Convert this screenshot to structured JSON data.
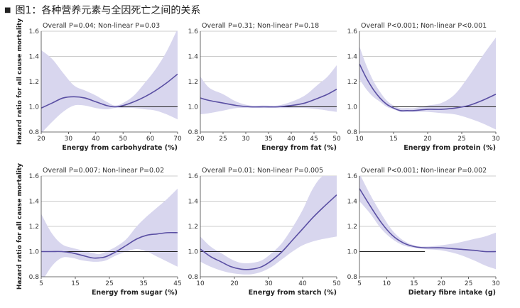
{
  "title": "图1：各种营养元素与全因死亡之间的关系",
  "ylabel": "Hazard ratio for all cause mortality",
  "colors": {
    "line": "#5a4fa3",
    "band": "#d8d6ee",
    "ref": "#222222",
    "grid": "#bdbdbd"
  },
  "chart_data": [
    {
      "type": "line",
      "annotation": "Overall P=0.04; Non-linear P=0.03",
      "xlabel": "Energy from carbohydrate (%)",
      "xlim": [
        20,
        70
      ],
      "xticks": [
        20,
        30,
        40,
        50,
        60,
        70
      ],
      "ylim": [
        0.8,
        1.6
      ],
      "yticks": [
        0.8,
        1.0,
        1.2,
        1.4,
        1.6
      ],
      "ref_range": [
        47,
        70
      ],
      "x": [
        20,
        24,
        28,
        32,
        36,
        40,
        44,
        47,
        50,
        54,
        58,
        62,
        66,
        70
      ],
      "y": [
        0.99,
        1.03,
        1.07,
        1.08,
        1.07,
        1.04,
        1.01,
        1.0,
        1.01,
        1.04,
        1.08,
        1.13,
        1.19,
        1.26
      ],
      "lower": [
        0.79,
        0.88,
        0.96,
        1.01,
        1.01,
        0.99,
        0.98,
        0.99,
        0.99,
        0.99,
        0.98,
        0.97,
        0.94,
        0.9
      ],
      "upper": [
        1.45,
        1.38,
        1.27,
        1.17,
        1.13,
        1.09,
        1.04,
        1.01,
        1.03,
        1.09,
        1.19,
        1.3,
        1.44,
        1.62
      ]
    },
    {
      "type": "line",
      "annotation": "Overall P=0.31; Non-linear P=0.18",
      "xlabel": "Energy from fat (%)",
      "xlim": [
        20,
        50
      ],
      "xticks": [
        20,
        25,
        30,
        35,
        40,
        45,
        50
      ],
      "ylim": [
        0.8,
        1.6
      ],
      "yticks": [
        0.8,
        1.0,
        1.2,
        1.4,
        1.6
      ],
      "ref_range": [
        31,
        50
      ],
      "x": [
        20,
        22,
        25,
        28,
        31,
        34,
        37,
        40,
        43,
        46,
        48,
        50
      ],
      "y": [
        1.07,
        1.05,
        1.03,
        1.01,
        1.0,
        1.0,
        1.0,
        1.01,
        1.03,
        1.07,
        1.1,
        1.14
      ],
      "lower": [
        0.94,
        0.95,
        0.97,
        0.99,
        0.99,
        0.99,
        0.99,
        0.99,
        0.99,
        0.98,
        0.97,
        0.96
      ],
      "upper": [
        1.24,
        1.15,
        1.1,
        1.04,
        1.01,
        1.01,
        1.01,
        1.04,
        1.09,
        1.18,
        1.24,
        1.33
      ]
    },
    {
      "type": "line",
      "annotation": "Overall P<0.001; Non-linear P<0.001",
      "xlabel": "Energy from protein (%)",
      "xlim": [
        10,
        30
      ],
      "xticks": [
        10,
        15,
        20,
        25,
        30
      ],
      "ylim": [
        0.8,
        1.6
      ],
      "yticks": [
        0.8,
        1.0,
        1.2,
        1.4,
        1.6
      ],
      "ref_range": [
        14.5,
        30
      ],
      "x": [
        10,
        11,
        12,
        13,
        14,
        15,
        16,
        17,
        18,
        20,
        22,
        24,
        26,
        28,
        30
      ],
      "y": [
        1.34,
        1.23,
        1.14,
        1.07,
        1.02,
        0.99,
        0.97,
        0.97,
        0.97,
        0.98,
        0.98,
        0.99,
        1.01,
        1.05,
        1.1
      ],
      "lower": [
        1.22,
        1.14,
        1.08,
        1.04,
        1.0,
        0.98,
        0.96,
        0.96,
        0.96,
        0.96,
        0.95,
        0.94,
        0.91,
        0.87,
        0.82
      ],
      "upper": [
        1.48,
        1.33,
        1.21,
        1.12,
        1.05,
        1.01,
        0.99,
        0.99,
        0.99,
        1.01,
        1.03,
        1.1,
        1.24,
        1.4,
        1.55
      ]
    },
    {
      "type": "line",
      "annotation": "Overall P=0.007; Non-linear P=0.02",
      "xlabel": "Energy from sugar (%)",
      "xlim": [
        5,
        45
      ],
      "xticks": [
        5,
        15,
        25,
        35,
        45
      ],
      "ylim": [
        0.8,
        1.6
      ],
      "yticks": [
        0.8,
        1.0,
        1.2,
        1.4,
        1.6
      ],
      "ref_range": [
        5,
        45
      ],
      "x": [
        5,
        8,
        11,
        14,
        17,
        20,
        22,
        24,
        27,
        30,
        33,
        36,
        39,
        42,
        45
      ],
      "y": [
        1.0,
        1.0,
        1.0,
        0.99,
        0.97,
        0.95,
        0.95,
        0.96,
        1.0,
        1.05,
        1.1,
        1.13,
        1.14,
        1.15,
        1.15
      ],
      "lower": [
        0.75,
        0.88,
        0.95,
        0.95,
        0.93,
        0.92,
        0.92,
        0.93,
        0.97,
        1.0,
        1.02,
        1.0,
        0.96,
        0.92,
        0.88
      ],
      "upper": [
        1.3,
        1.15,
        1.06,
        1.03,
        1.01,
        0.99,
        0.98,
        1.0,
        1.04,
        1.1,
        1.2,
        1.28,
        1.35,
        1.42,
        1.5
      ]
    },
    {
      "type": "line",
      "annotation": "Overall P=0.01; Non-linear P=0.005",
      "xlabel": "Energy from starch (%)",
      "xlim": [
        10,
        50
      ],
      "xticks": [
        10,
        20,
        30,
        40,
        50
      ],
      "ylim": [
        0.8,
        1.6
      ],
      "yticks": [
        0.8,
        1.0,
        1.2,
        1.4,
        1.6
      ],
      "ref_range": [
        10,
        34
      ],
      "x": [
        10,
        13,
        16,
        19,
        22,
        25,
        28,
        31,
        34,
        37,
        40,
        43,
        46,
        50
      ],
      "y": [
        1.02,
        0.96,
        0.92,
        0.88,
        0.86,
        0.86,
        0.88,
        0.93,
        1.0,
        1.09,
        1.18,
        1.27,
        1.35,
        1.45
      ],
      "lower": [
        0.92,
        0.88,
        0.85,
        0.83,
        0.82,
        0.82,
        0.84,
        0.88,
        0.94,
        1.0,
        1.05,
        1.08,
        1.1,
        1.12
      ],
      "upper": [
        1.12,
        1.04,
        0.99,
        0.94,
        0.91,
        0.91,
        0.93,
        0.99,
        1.07,
        1.19,
        1.33,
        1.5,
        1.6,
        1.6
      ]
    },
    {
      "type": "line",
      "annotation": "Overall P<0.001; Non-linear P=0.002",
      "xlabel": "Dietary fibre intake (g)",
      "xlim": [
        5,
        30
      ],
      "xticks": [
        5,
        10,
        15,
        20,
        25,
        30
      ],
      "ylim": [
        0.8,
        1.6
      ],
      "yticks": [
        0.8,
        1.0,
        1.2,
        1.4,
        1.6
      ],
      "ref_range": [
        5,
        17
      ],
      "x": [
        5,
        7,
        9,
        11,
        13,
        15,
        17,
        20,
        23,
        26,
        28,
        30
      ],
      "y": [
        1.5,
        1.36,
        1.23,
        1.13,
        1.07,
        1.04,
        1.03,
        1.03,
        1.02,
        1.01,
        1.0,
        1.0
      ],
      "lower": [
        1.4,
        1.3,
        1.18,
        1.1,
        1.05,
        1.03,
        1.02,
        1.01,
        0.98,
        0.93,
        0.89,
        0.86
      ],
      "upper": [
        1.62,
        1.45,
        1.3,
        1.17,
        1.09,
        1.05,
        1.04,
        1.05,
        1.07,
        1.1,
        1.12,
        1.15
      ]
    }
  ]
}
